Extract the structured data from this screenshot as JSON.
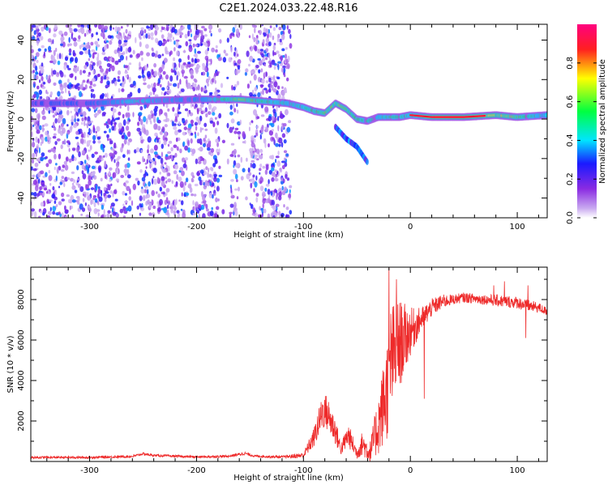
{
  "title": "C2E1.2024.033.22.48.R16",
  "colors": {
    "snr_line": "#ee2a2a",
    "spectrogram_background": "#ffffff",
    "axes": "#000000"
  },
  "chart_data": [
    {
      "type": "heatmap",
      "xlabel": "Height of straight line (km)",
      "ylabel": "Frequency (Hz)",
      "xlim": [
        -355,
        128
      ],
      "ylim": [
        -50,
        48
      ],
      "xticks": [
        -300,
        -200,
        -100,
        0,
        100
      ],
      "xtick_labels": [
        "-300",
        "-200",
        "-100",
        "0",
        "100"
      ],
      "yticks": [
        -40,
        -20,
        0,
        20,
        40
      ],
      "ytick_labels": [
        "-40",
        "-20",
        "0",
        "20",
        "40"
      ],
      "colorbar": {
        "label": "Normalized spectral amplitude",
        "range": [
          0,
          1
        ],
        "ticks": [
          0.0,
          0.2,
          0.4,
          0.6,
          0.8
        ],
        "tick_labels": [
          "0.0",
          "0.2",
          "0.4",
          "0.6",
          "0.8"
        ],
        "colormap": [
          "#ffffff",
          "#c8a8f0",
          "#8a2be2",
          "#1a1aff",
          "#00e5ff",
          "#00ff40",
          "#ffff00",
          "#ff2020",
          "#ff007f"
        ]
      },
      "features": {
        "noise_region_x": [
          -355,
          -112
        ],
        "noise_gaps_x": [
          [
            -262,
            -255
          ],
          [
            -178,
            -168
          ],
          [
            -160,
            -150
          ]
        ],
        "ridge": [
          [
            -355,
            8
          ],
          [
            -300,
            8
          ],
          [
            -260,
            9
          ],
          [
            -200,
            10
          ],
          [
            -160,
            10
          ],
          [
            -115,
            8
          ],
          [
            -100,
            6
          ],
          [
            -90,
            4
          ],
          [
            -80,
            3
          ],
          [
            -70,
            8
          ],
          [
            -60,
            5
          ],
          [
            -50,
            0
          ],
          [
            -40,
            -1
          ],
          [
            -30,
            1
          ],
          [
            -20,
            1
          ],
          [
            -10,
            1
          ],
          [
            0,
            2
          ],
          [
            20,
            1
          ],
          [
            50,
            1
          ],
          [
            80,
            2
          ],
          [
            100,
            1
          ],
          [
            128,
            2
          ]
        ],
        "ridge_strength": [
          0.25,
          0.3,
          0.55,
          0.4,
          0.75,
          0.55,
          0.6,
          0.65,
          0.7,
          0.75,
          0.7,
          0.65,
          0.6,
          0.55,
          0.6,
          0.6,
          0.65,
          0.85,
          0.9,
          0.8,
          0.7,
          0.5
        ],
        "secondary_branch": [
          [
            -70,
            -4
          ],
          [
            -60,
            -10
          ],
          [
            -50,
            -14
          ],
          [
            -40,
            -22
          ]
        ]
      }
    },
    {
      "type": "line",
      "xlabel": "Height of straight line (km)",
      "ylabel": "SNR (10 * v/v)",
      "xlim": [
        -355,
        128
      ],
      "ylim": [
        0,
        9600
      ],
      "xticks": [
        -300,
        -200,
        -100,
        0,
        100
      ],
      "xtick_labels": [
        "-300",
        "-200",
        "-100",
        "0",
        "100"
      ],
      "yticks": [
        2000,
        4000,
        6000,
        8000
      ],
      "ytick_labels": [
        "2000",
        "4000",
        "6000",
        "8000"
      ],
      "series": [
        {
          "x": [
            -355,
            -300,
            -260,
            -250,
            -240,
            -200,
            -170,
            -155,
            -145,
            -120,
            -100,
            -90,
            -82,
            -78,
            -70,
            -65,
            -58,
            -50,
            -45,
            -38,
            -30,
            -22,
            -18,
            -10,
            0,
            10,
            20,
            30,
            40,
            50,
            60,
            70,
            80,
            90,
            100,
            110,
            120,
            128
          ],
          "values": [
            200,
            200,
            250,
            380,
            300,
            220,
            260,
            400,
            260,
            220,
            300,
            1200,
            2500,
            2400,
            1500,
            600,
            1300,
            400,
            900,
            400,
            1800,
            3500,
            5000,
            5800,
            6400,
            7000,
            7600,
            7900,
            8000,
            8100,
            8050,
            8000,
            7950,
            7900,
            7850,
            7700,
            7600,
            7400
          ],
          "noise_amplitude": [
            60,
            60,
            60,
            60,
            60,
            60,
            60,
            80,
            60,
            60,
            150,
            500,
            900,
            900,
            700,
            300,
            600,
            300,
            600,
            500,
            1500,
            2500,
            2800,
            2200,
            1200,
            600,
            450,
            350,
            250,
            250,
            250,
            250,
            300,
            300,
            300,
            300,
            250,
            200
          ],
          "spikes": [
            {
              "x": -20,
              "value": 9600
            },
            {
              "x": -13,
              "value": 9000
            },
            {
              "x": 78,
              "value": 8700
            },
            {
              "x": 88,
              "value": 8900
            },
            {
              "x": 108,
              "value": 6100
            },
            {
              "x": 110,
              "value": 8700
            },
            {
              "x": 13,
              "value": 3100
            }
          ]
        }
      ]
    }
  ]
}
